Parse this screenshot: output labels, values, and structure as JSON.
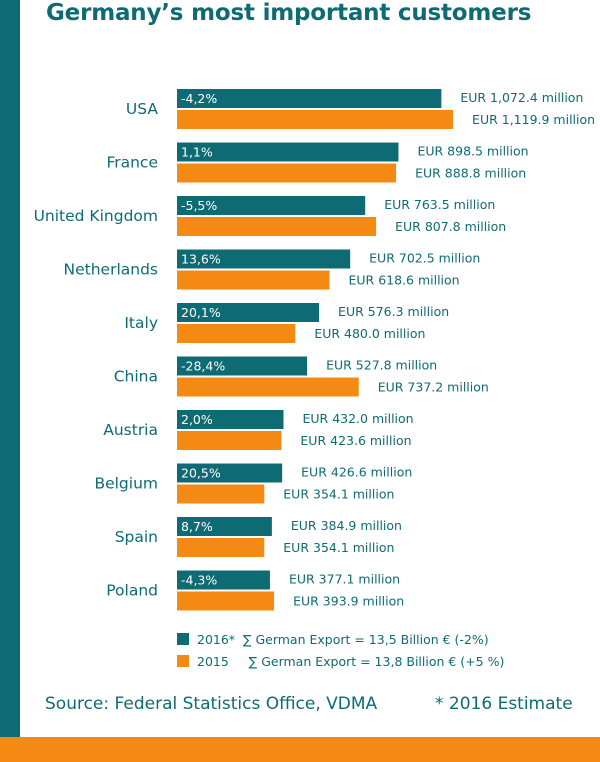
{
  "title": "Germany’s most important customers",
  "colors": {
    "accent": "#0f6b73",
    "highlight": "#f48a13"
  },
  "chart_data": {
    "type": "bar",
    "orientation": "horizontal",
    "title": "Germany’s most important customers",
    "categories": [
      "USA",
      "France",
      "United Kingdom",
      "Netherlands",
      "Italy",
      "China",
      "Austria",
      "Belgium",
      "Spain",
      "Poland"
    ],
    "series": [
      {
        "name": "2016*",
        "color": "#0f6b73",
        "values": [
          1072.4,
          898.5,
          763.5,
          702.5,
          576.3,
          527.8,
          432.0,
          426.6,
          384.9,
          377.1
        ],
        "value_labels": [
          "EUR 1,072.4 million",
          "EUR 898.5 million",
          "EUR 763.5 million",
          "EUR 702.5 million",
          "EUR 576.3 million",
          "EUR 527.8 million",
          "EUR 432.0 million",
          "EUR 426.6 million",
          "EUR 384.9 million",
          "EUR 377.1 million"
        ],
        "change_labels": [
          "-4,2%",
          "1,1%",
          "-5,5%",
          "13,6%",
          "20,1%",
          "-28,4%",
          "2,0%",
          "20,5%",
          "8,7%",
          "-4,3%"
        ]
      },
      {
        "name": "2015",
        "color": "#f48a13",
        "values": [
          1119.9,
          888.8,
          807.8,
          618.6,
          480.0,
          737.2,
          423.6,
          354.1,
          354.1,
          393.9
        ],
        "value_labels": [
          "EUR 1,119.9 million",
          "EUR 888.8 million",
          "EUR 807.8 million",
          "EUR 618.6 million",
          "EUR 480.0 million",
          "EUR 737.2 million",
          "EUR 423.6 million",
          "EUR 354.1 million",
          "EUR 354.1 million",
          "EUR 393.9 million"
        ]
      }
    ]
  },
  "legend": [
    {
      "label": "2016*",
      "text": "∑ German Export = 13,5 Billion € (-2%)"
    },
    {
      "label": "2015",
      "text": "∑ German Export = 13,8 Billion € (+5 %)"
    }
  ],
  "footer": {
    "source": "Source: Federal Statistics Office, VDMA",
    "note": "* 2016 Estimate"
  }
}
